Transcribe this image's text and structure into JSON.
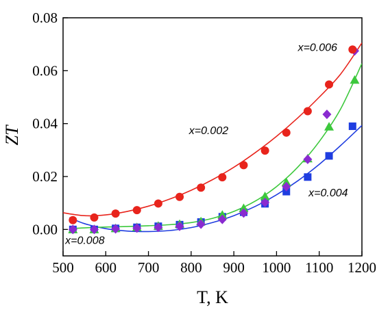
{
  "chart_data": {
    "type": "scatter",
    "xlabel": "T, K",
    "ylabel": "ZT",
    "xlim": [
      500,
      1200
    ],
    "ylim": [
      -0.01,
      0.08
    ],
    "xticks": [
      500,
      600,
      700,
      800,
      900,
      1000,
      1100,
      1200
    ],
    "yticks": [
      0.0,
      0.02,
      0.04,
      0.06,
      0.08
    ],
    "ytick_labels": [
      "0.00",
      "0.02",
      "0.04",
      "0.06",
      "0.08"
    ],
    "grid": false,
    "series": [
      {
        "name": "x=0.002",
        "marker": "circle",
        "color": "#e8241c",
        "x": [
          523,
          573,
          623,
          673,
          723,
          773,
          823,
          873,
          923,
          973,
          1023,
          1073,
          1123,
          1178
        ],
        "y": [
          0.0035,
          0.0045,
          0.006,
          0.0073,
          0.0098,
          0.0123,
          0.0158,
          0.0197,
          0.0243,
          0.0298,
          0.0366,
          0.0447,
          0.0548,
          0.068
        ],
        "fit": [
          [
            500,
            0.0063
          ],
          [
            550,
            0.0052
          ],
          [
            600,
            0.0055
          ],
          [
            650,
            0.0068
          ],
          [
            700,
            0.0088
          ],
          [
            750,
            0.0115
          ],
          [
            800,
            0.0148
          ],
          [
            850,
            0.0188
          ],
          [
            900,
            0.0235
          ],
          [
            950,
            0.029
          ],
          [
            1000,
            0.0352
          ],
          [
            1050,
            0.0422
          ],
          [
            1100,
            0.05
          ],
          [
            1150,
            0.0587
          ],
          [
            1200,
            0.0705
          ]
        ]
      },
      {
        "name": "x=0.004",
        "marker": "square",
        "color": "#1f3de0",
        "x": [
          523,
          573,
          623,
          673,
          723,
          773,
          823,
          873,
          923,
          973,
          1023,
          1073,
          1123,
          1178
        ],
        "y": [
          0.0,
          0.0,
          0.0004,
          0.0008,
          0.0012,
          0.0018,
          0.0028,
          0.0048,
          0.0065,
          0.0097,
          0.0143,
          0.0198,
          0.0278,
          0.039
        ],
        "fit": [
          [
            515,
            0.0045
          ],
          [
            550,
            0.0022
          ],
          [
            600,
            0.0003
          ],
          [
            650,
            -0.0006
          ],
          [
            700,
            -0.0008
          ],
          [
            750,
            -0.0004
          ],
          [
            800,
            0.0007
          ],
          [
            850,
            0.0026
          ],
          [
            900,
            0.0052
          ],
          [
            950,
            0.0087
          ],
          [
            1000,
            0.0131
          ],
          [
            1050,
            0.0184
          ],
          [
            1100,
            0.0246
          ],
          [
            1150,
            0.0317
          ],
          [
            1200,
            0.0393
          ]
        ]
      },
      {
        "name": "x=0.006",
        "marker": "diamond",
        "color": "#8a2bd0",
        "x": [
          523,
          573,
          623,
          673,
          723,
          773,
          823,
          873,
          923,
          973,
          1023,
          1073,
          1118,
          1183
        ],
        "y": [
          0.0,
          0.0,
          0.0002,
          0.0005,
          0.0008,
          0.0012,
          0.002,
          0.0038,
          0.0062,
          0.0102,
          0.0162,
          0.0265,
          0.0435,
          0.0675
        ],
        "fit": []
      },
      {
        "name": "x=0.008",
        "marker": "triangle",
        "color": "#3cc83c",
        "x": [
          523,
          573,
          623,
          673,
          723,
          773,
          823,
          873,
          923,
          973,
          1023,
          1073,
          1123,
          1183
        ],
        "y": [
          0.0,
          0.0,
          0.0004,
          0.0008,
          0.0013,
          0.002,
          0.003,
          0.0055,
          0.008,
          0.0125,
          0.0178,
          0.0268,
          0.0388,
          0.0565
        ],
        "fit": [
          [
            515,
            0.0003
          ],
          [
            550,
            0.0006
          ],
          [
            600,
            0.0009
          ],
          [
            650,
            0.0011
          ],
          [
            700,
            0.0014
          ],
          [
            750,
            0.0018
          ],
          [
            800,
            0.0026
          ],
          [
            850,
            0.0042
          ],
          [
            900,
            0.0068
          ],
          [
            950,
            0.0107
          ],
          [
            1000,
            0.0162
          ],
          [
            1050,
            0.0236
          ],
          [
            1100,
            0.0332
          ],
          [
            1150,
            0.0455
          ],
          [
            1200,
            0.0627
          ]
        ]
      }
    ],
    "annotations": [
      {
        "text": "x=0.006",
        "x": 1050,
        "y": 0.0675
      },
      {
        "text": "x=0.002",
        "x": 795,
        "y": 0.036
      },
      {
        "text": "x=0.004",
        "x": 1075,
        "y": 0.0125
      },
      {
        "text": "x=0.008",
        "x": 505,
        "y": -0.0055
      }
    ]
  }
}
